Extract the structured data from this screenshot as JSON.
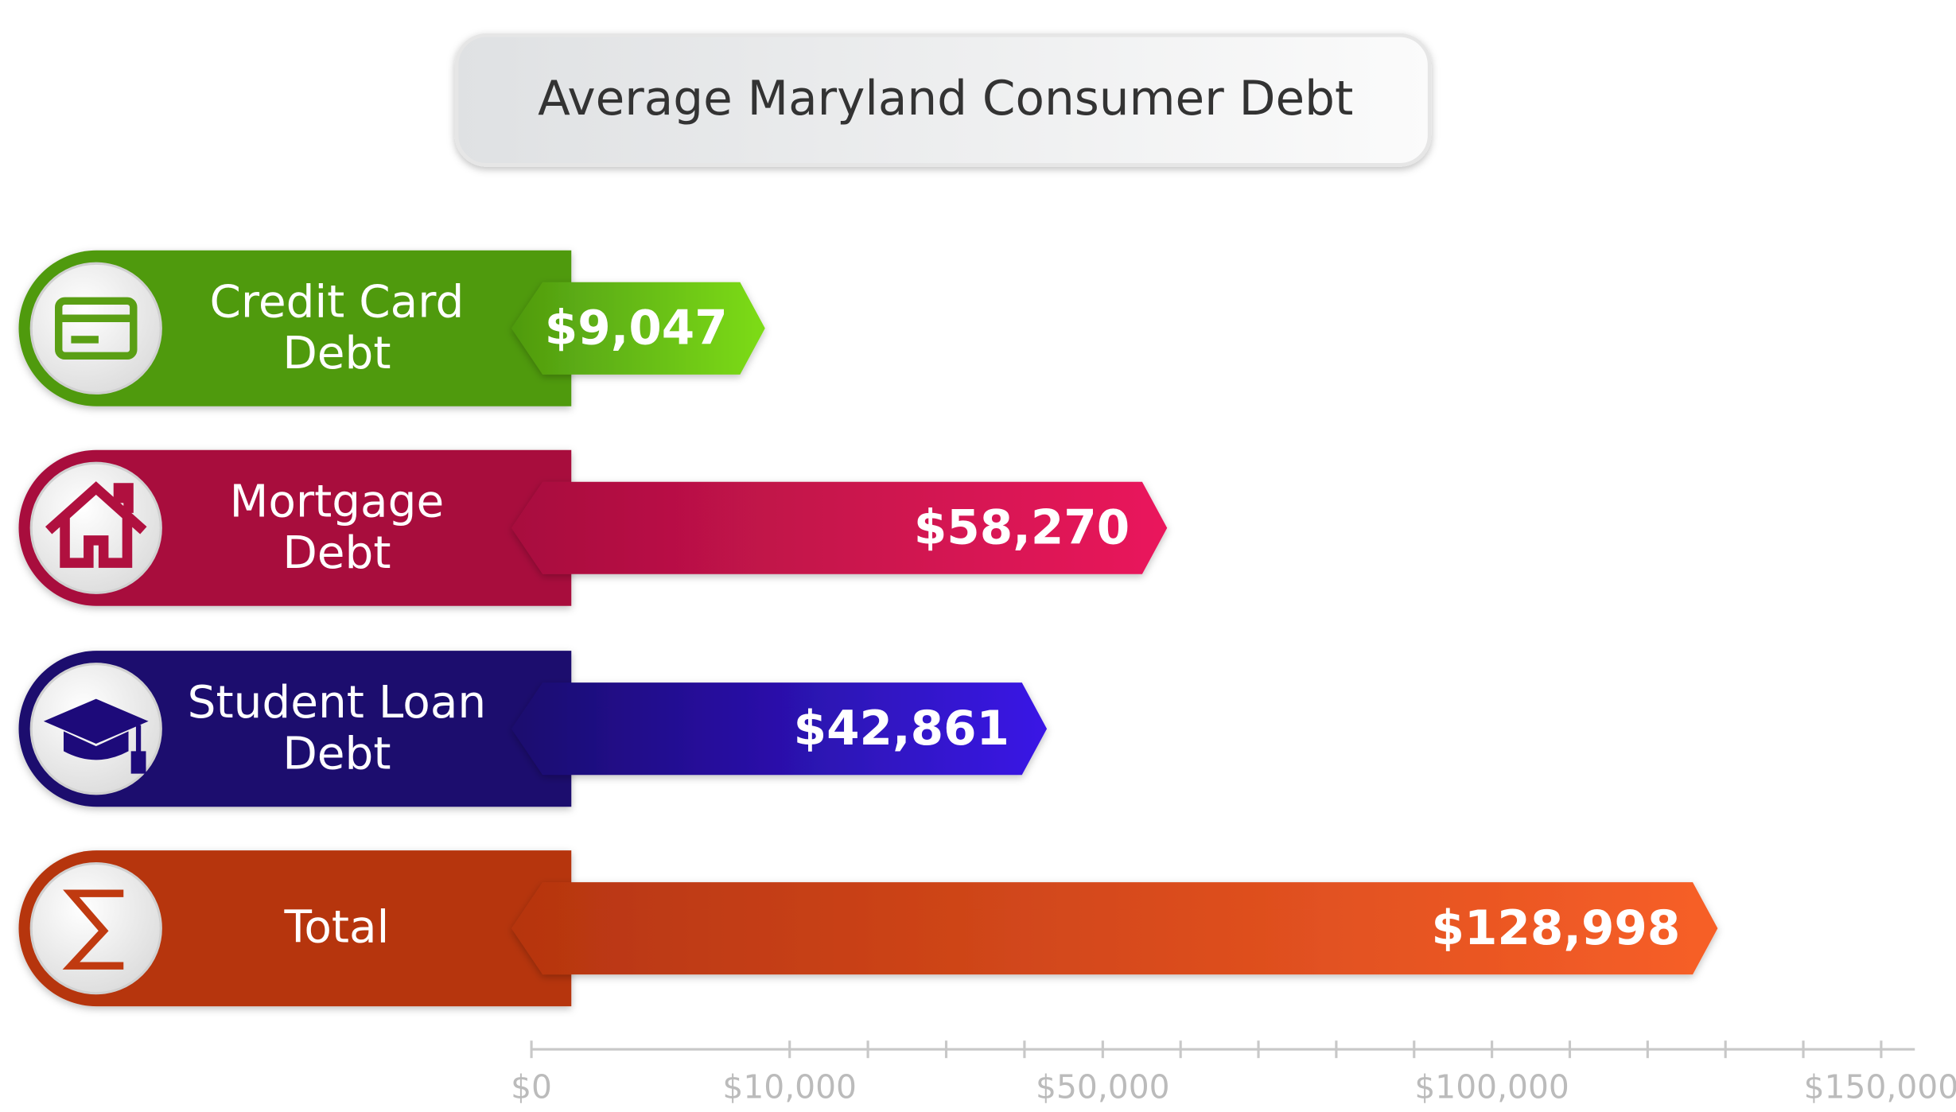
{
  "chart_data": {
    "type": "bar",
    "title": "Average Maryland Consumer Debt",
    "categories": [
      "Credit Card Debt",
      "Mortgage Debt",
      "Student Loan Debt",
      "Total"
    ],
    "values": [
      9047,
      58270,
      42861,
      128998
    ],
    "value_labels": [
      "$9,047",
      "$58,270",
      "$42,861",
      "$128,998"
    ],
    "colors": [
      [
        "#4f9a10",
        "#7ddc18"
      ],
      [
        "#a80f3e",
        "#ea175c"
      ],
      [
        "#1a0a6e",
        "#3a18e6"
      ],
      [
        "#b63510",
        "#f75f28"
      ]
    ],
    "xlim": [
      0,
      150000
    ],
    "xticks": [
      {
        "value": 0,
        "label": "$0"
      },
      {
        "value": 10000,
        "label": "$10,000"
      },
      {
        "value": 50000,
        "label": "$50,000"
      },
      {
        "value": 100000,
        "label": "$100,000"
      },
      {
        "value": 150000,
        "label": "$150,000"
      }
    ],
    "minor_xticks": [
      20000,
      30000,
      40000,
      60000,
      70000,
      80000,
      90000,
      110000,
      120000,
      130000,
      140000
    ]
  }
}
